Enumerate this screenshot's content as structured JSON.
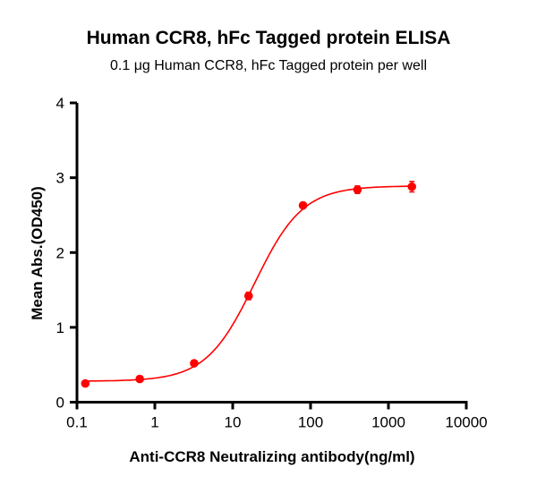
{
  "chart_data": {
    "type": "scatter",
    "title": "Human CCR8, hFc Tagged protein ELISA",
    "subtitle": "0.1 μg Human CCR8, hFc Tagged protein per well",
    "xlabel": "Anti-CCR8 Neutralizing antibody(ng/ml)",
    "ylabel": "Mean Abs.(OD450)",
    "xscale": "log",
    "xlim": [
      0.1,
      10000
    ],
    "ylim": [
      0,
      4
    ],
    "xticks": [
      "0.1",
      "1",
      "10",
      "100",
      "1000",
      "10000"
    ],
    "xtick_values": [
      0.1,
      1,
      10,
      100,
      1000,
      10000
    ],
    "yticks": [
      "0",
      "1",
      "2",
      "3",
      "4"
    ],
    "ytick_values": [
      0,
      1,
      2,
      3,
      4
    ],
    "grid": false,
    "series": [
      {
        "x": [
          0.128,
          0.64,
          3.2,
          16,
          80,
          400,
          2000
        ],
        "y": [
          0.25,
          0.31,
          0.52,
          1.42,
          2.63,
          2.84,
          2.88
        ],
        "error": [
          0.02,
          0.02,
          0.03,
          0.05,
          0.03,
          0.05,
          0.07
        ],
        "fit": "sigmoidal 4PL",
        "color": "#ff0000"
      }
    ]
  }
}
